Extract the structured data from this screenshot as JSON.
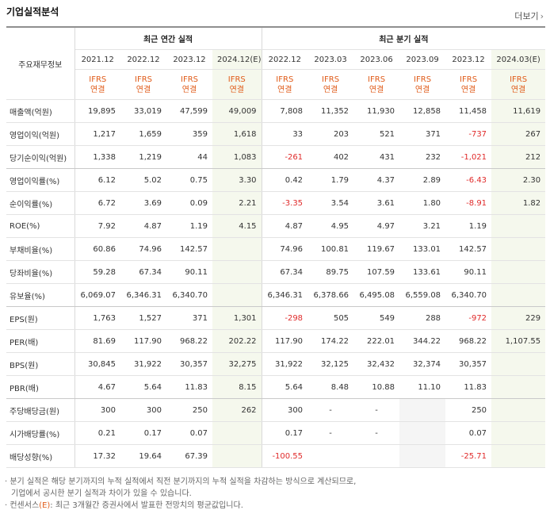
{
  "section": {
    "title": "기업실적분석",
    "more_label": "더보기",
    "more_arrow": "›"
  },
  "header": {
    "row_label": "주요재무정보",
    "annual_title": "최근 연간 실적",
    "quarterly_title": "최근 분기 실적",
    "annual_dates": [
      "2021.12",
      "2022.12",
      "2023.12",
      "2024.12(E)"
    ],
    "quarterly_dates": [
      "2022.12",
      "2023.03",
      "2023.06",
      "2023.09",
      "2023.12",
      "2024.03(E)"
    ],
    "ifrs_top": "IFRS",
    "ifrs_bottom": "연결"
  },
  "rows": [
    {
      "label": "매출액(억원)",
      "values": [
        "19,895",
        "33,019",
        "47,599",
        "49,009",
        "7,808",
        "11,352",
        "11,930",
        "12,858",
        "11,458",
        "11,619"
      ]
    },
    {
      "label": "영업이익(억원)",
      "values": [
        "1,217",
        "1,659",
        "359",
        "1,618",
        "33",
        "203",
        "521",
        "371",
        "-737",
        "267"
      ]
    },
    {
      "label": "당기순이익(억원)",
      "values": [
        "1,338",
        "1,219",
        "44",
        "1,083",
        "-261",
        "402",
        "431",
        "232",
        "-1,021",
        "212"
      ]
    },
    {
      "label": "영업이익률(%)",
      "values": [
        "6.12",
        "5.02",
        "0.75",
        "3.30",
        "0.42",
        "1.79",
        "4.37",
        "2.89",
        "-6.43",
        "2.30"
      ]
    },
    {
      "label": "순이익률(%)",
      "values": [
        "6.72",
        "3.69",
        "0.09",
        "2.21",
        "-3.35",
        "3.54",
        "3.61",
        "1.80",
        "-8.91",
        "1.82"
      ]
    },
    {
      "label": "ROE(%)",
      "values": [
        "7.92",
        "4.87",
        "1.19",
        "4.15",
        "4.87",
        "4.95",
        "4.97",
        "3.21",
        "1.19",
        ""
      ]
    },
    {
      "label": "부채비율(%)",
      "values": [
        "60.86",
        "74.96",
        "142.57",
        "",
        "74.96",
        "100.81",
        "119.67",
        "133.01",
        "142.57",
        ""
      ]
    },
    {
      "label": "당좌비율(%)",
      "values": [
        "59.28",
        "67.34",
        "90.11",
        "",
        "67.34",
        "89.75",
        "107.59",
        "133.61",
        "90.11",
        ""
      ]
    },
    {
      "label": "유보율(%)",
      "values": [
        "6,069.07",
        "6,346.31",
        "6,340.70",
        "",
        "6,346.31",
        "6,378.66",
        "6,495.08",
        "6,559.08",
        "6,340.70",
        ""
      ]
    },
    {
      "label": "EPS(원)",
      "values": [
        "1,763",
        "1,527",
        "371",
        "1,301",
        "-298",
        "505",
        "549",
        "288",
        "-972",
        "229"
      ]
    },
    {
      "label": "PER(배)",
      "values": [
        "81.69",
        "117.90",
        "968.22",
        "202.22",
        "117.90",
        "174.22",
        "222.01",
        "344.22",
        "968.22",
        "1,107.55"
      ]
    },
    {
      "label": "BPS(원)",
      "values": [
        "30,845",
        "31,922",
        "30,357",
        "32,275",
        "31,922",
        "32,125",
        "32,432",
        "32,374",
        "30,357",
        ""
      ]
    },
    {
      "label": "PBR(배)",
      "values": [
        "4.67",
        "5.64",
        "11.83",
        "8.15",
        "5.64",
        "8.48",
        "10.88",
        "11.10",
        "11.83",
        ""
      ]
    },
    {
      "label": "주당배당금(원)",
      "values": [
        "300",
        "300",
        "250",
        "262",
        "300",
        "-",
        "-",
        "",
        "250",
        ""
      ]
    },
    {
      "label": "시가배당률(%)",
      "values": [
        "0.21",
        "0.17",
        "0.07",
        "",
        "0.17",
        "-",
        "-",
        "",
        "0.07",
        ""
      ]
    },
    {
      "label": "배당성향(%)",
      "values": [
        "17.32",
        "19.64",
        "67.39",
        "",
        "-100.55",
        "",
        "",
        "",
        "-25.71",
        ""
      ]
    }
  ],
  "notes": {
    "line1": "· 분기 실적은 해당 분기까지의 누적 실적에서 직전 분기까지의 누적 실적을 차감하는 방식으로 계산되므로,",
    "line2": "기업에서 공시한 분기 실적과 차이가 있을 수 있습니다.",
    "line3_pre": "· 컨센서스",
    "line3_em": "(E)",
    "line3_post": ": 최근 3개월간 증권사에서 발표한 전망치의 평균값입니다."
  },
  "colors": {
    "ifrs": "#e05b19",
    "negative": "#e02a2a",
    "estimate_bg": "#f5f8ed"
  }
}
